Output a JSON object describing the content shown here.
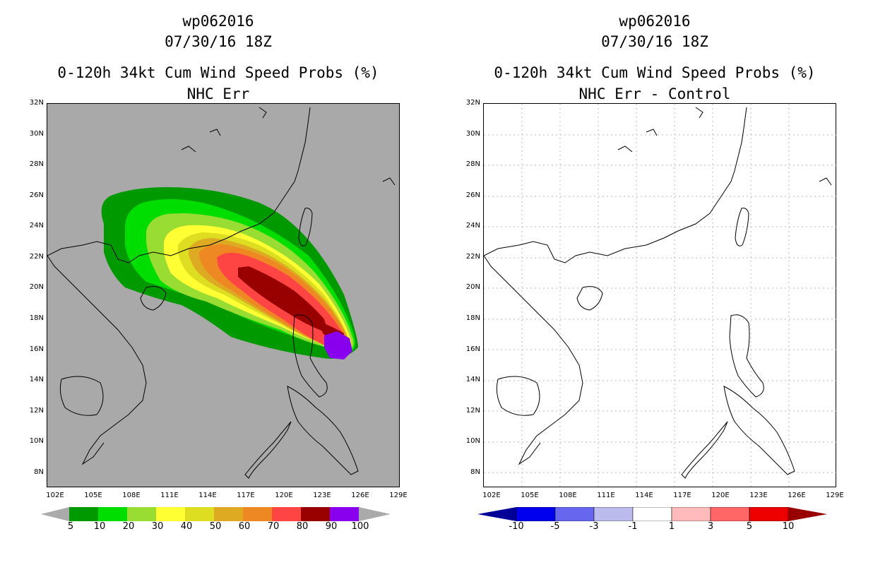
{
  "left": {
    "title1": "wp062016",
    "title2": "07/30/16 18Z",
    "title3": "0-120h 34kt Cum Wind Speed Probs (%)",
    "title4": "NHC Err",
    "colorbar_labels": [
      "5",
      "10",
      "20",
      "30",
      "40",
      "50",
      "60",
      "70",
      "80",
      "90",
      "100"
    ],
    "colorbar_colors": [
      "#009900",
      "#00dd00",
      "#99dd33",
      "#ffff33",
      "#dddd22",
      "#ddaa22",
      "#ee8822",
      "#ff4444",
      "#990000",
      "#8800ee"
    ],
    "background": "#a9a9a9"
  },
  "right": {
    "title1": "wp062016",
    "title2": "07/30/16 18Z",
    "title3": "0-120h 34kt Cum Wind Speed Probs (%)",
    "title4": "NHC Err - Control",
    "colorbar_labels": [
      "-10",
      "-5",
      "-3",
      "-1",
      "1",
      "3",
      "5",
      "10"
    ],
    "colorbar_colors": [
      "#000099",
      "#0000ee",
      "#6666ee",
      "#bbbbee",
      "#ffffff",
      "#ffbbbb",
      "#ff6666",
      "#ee0000",
      "#990000"
    ],
    "background": "#ffffff"
  },
  "axes": {
    "lat_labels": [
      "32N",
      "30N",
      "28N",
      "26N",
      "24N",
      "22N",
      "20N",
      "18N",
      "16N",
      "14N",
      "12N",
      "10N",
      "8N"
    ],
    "lon_labels": [
      "102E",
      "105E",
      "108E",
      "111E",
      "114E",
      "117E",
      "120E",
      "123E",
      "126E",
      "129E"
    ]
  },
  "legend_arrow_color": "#aaaaaa"
}
